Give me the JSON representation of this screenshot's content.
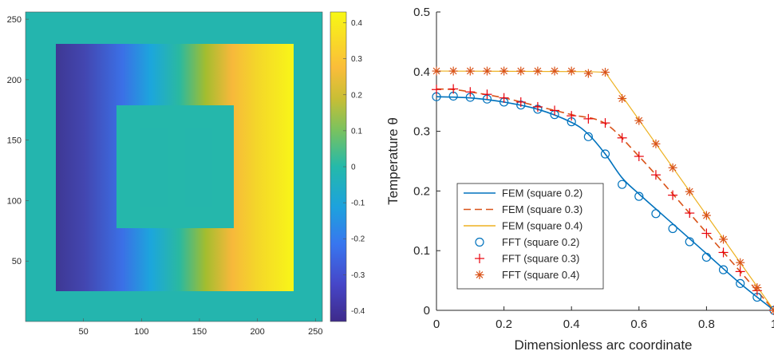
{
  "chart_data": [
    {
      "type": "heatmap",
      "xlim": [
        0,
        256
      ],
      "ylim": [
        0,
        256
      ],
      "x_ticks": [
        "50",
        "100",
        "150",
        "200",
        "250"
      ],
      "y_ticks": [
        "50",
        "100",
        "150",
        "200",
        "250"
      ],
      "colorbar": {
        "range": [
          -0.43,
          0.43
        ],
        "ticks": [
          "0.4",
          "0.3",
          "0.2",
          "0.1",
          "0",
          "-0.1",
          "-0.2",
          "-0.3",
          "-0.4"
        ],
        "colormap": "parula"
      },
      "regions": {
        "background_value": 0,
        "outer_square": {
          "x": [
            28,
            232
          ],
          "y": [
            25,
            232
          ],
          "value_left": -0.4,
          "value_right": 0.4
        },
        "inner_square": {
          "x": [
            78,
            180
          ],
          "y": [
            78,
            180
          ],
          "value": 0
        }
      }
    },
    {
      "type": "line",
      "xlabel": "Dimensionless arc coordinate",
      "ylabel": "Temperature θ",
      "xlim": [
        0,
        1
      ],
      "ylim": [
        0,
        0.5
      ],
      "x_ticks": [
        "0",
        "0.2",
        "0.4",
        "0.6",
        "0.8",
        "1"
      ],
      "y_ticks": [
        "0",
        "0.1",
        "0.2",
        "0.3",
        "0.4",
        "0.5"
      ],
      "grid": false,
      "legend_position": "lower-left",
      "series": [
        {
          "name": "FEM (square 0.2)",
          "style": "solid",
          "color": "#0072BD",
          "x": [
            0,
            0.1,
            0.2,
            0.3,
            0.4,
            0.45,
            0.5,
            0.55,
            0.6,
            0.7,
            0.8,
            0.9,
            1.0
          ],
          "y": [
            0.358,
            0.356,
            0.349,
            0.337,
            0.315,
            0.295,
            0.262,
            0.222,
            0.195,
            0.145,
            0.095,
            0.045,
            0.0
          ]
        },
        {
          "name": "FEM (square 0.3)",
          "style": "dashed",
          "color": "#D95319",
          "x": [
            0,
            0.05,
            0.1,
            0.2,
            0.3,
            0.4,
            0.5,
            0.6,
            0.7,
            0.8,
            0.9,
            1.0
          ],
          "y": [
            0.371,
            0.37,
            0.366,
            0.356,
            0.342,
            0.328,
            0.313,
            0.258,
            0.195,
            0.13,
            0.065,
            0.0
          ]
        },
        {
          "name": "FEM (square 0.4)",
          "style": "solid",
          "color": "#EDB120",
          "x": [
            0,
            0.45,
            0.5,
            1.0
          ],
          "y": [
            0.401,
            0.4,
            0.399,
            0.0
          ]
        },
        {
          "name": "FFT (square 0.2)",
          "style": "markers",
          "marker": "circle",
          "color": "#0072BD",
          "x": [
            0,
            0.05,
            0.1,
            0.15,
            0.2,
            0.25,
            0.3,
            0.35,
            0.4,
            0.45,
            0.5,
            0.55,
            0.6,
            0.65,
            0.7,
            0.75,
            0.8,
            0.85,
            0.9,
            0.95,
            1.0
          ],
          "y": [
            0.358,
            0.359,
            0.357,
            0.354,
            0.349,
            0.344,
            0.337,
            0.328,
            0.316,
            0.291,
            0.262,
            0.211,
            0.191,
            0.162,
            0.137,
            0.115,
            0.089,
            0.068,
            0.045,
            0.022,
            0.0
          ]
        },
        {
          "name": "FFT (square 0.3)",
          "style": "markers",
          "marker": "plus",
          "color": "#E8000B",
          "x": [
            0,
            0.05,
            0.1,
            0.15,
            0.2,
            0.25,
            0.3,
            0.35,
            0.4,
            0.45,
            0.5,
            0.55,
            0.6,
            0.65,
            0.7,
            0.75,
            0.8,
            0.85,
            0.9,
            0.95,
            1.0
          ],
          "y": [
            0.37,
            0.371,
            0.366,
            0.362,
            0.356,
            0.349,
            0.341,
            0.335,
            0.326,
            0.321,
            0.314,
            0.289,
            0.258,
            0.227,
            0.193,
            0.163,
            0.129,
            0.097,
            0.065,
            0.033,
            0.0
          ]
        },
        {
          "name": "FFT (square 0.4)",
          "style": "markers",
          "marker": "asterisk",
          "color": "#D95319",
          "x": [
            0,
            0.05,
            0.1,
            0.15,
            0.2,
            0.25,
            0.3,
            0.35,
            0.4,
            0.45,
            0.5,
            0.55,
            0.6,
            0.65,
            0.7,
            0.75,
            0.8,
            0.85,
            0.9,
            0.95,
            1.0
          ],
          "y": [
            0.401,
            0.401,
            0.401,
            0.401,
            0.401,
            0.401,
            0.401,
            0.401,
            0.401,
            0.397,
            0.399,
            0.355,
            0.318,
            0.279,
            0.239,
            0.199,
            0.159,
            0.119,
            0.08,
            0.038,
            0.0
          ]
        }
      ]
    }
  ]
}
